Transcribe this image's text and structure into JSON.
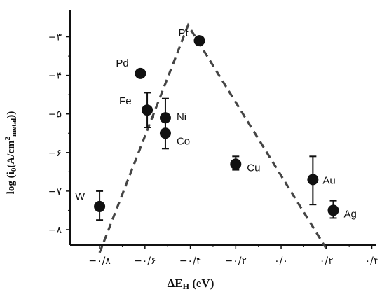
{
  "chart_data": {
    "type": "scatter",
    "title": "",
    "xlabel": "ΔE",
    "xlabel_sub": "H",
    "xlabel_unit": " (eV)",
    "ylabel_prefix": "log (i",
    "ylabel_sub0": "0",
    "ylabel_mid": "(A/cm",
    "ylabel_sup": "2",
    "ylabel_sub_metal": "metal",
    "ylabel_suffix": "))",
    "xlim": [
      -0.93,
      0.42
    ],
    "ylim": [
      -8.4,
      -2.3
    ],
    "x_ticks": [
      -0.8,
      -0.6,
      -0.4,
      -0.2,
      0.0,
      0.2,
      0.4
    ],
    "x_tick_labels": [
      "−۰/۸",
      "−۰/۶",
      "−۰/۴",
      "−۰/۲",
      "۰/۰",
      "۰/۲",
      "۰/۴"
    ],
    "y_ticks": [
      -3,
      -4,
      -5,
      -6,
      -7,
      -8
    ],
    "y_tick_labels": [
      "−۳",
      "−۴",
      "−۵",
      "−۶",
      "−۷",
      "−۸"
    ],
    "grid": false,
    "legend": "none",
    "points": [
      {
        "label": "Pt",
        "x": -0.36,
        "y": -3.1
      },
      {
        "label": "Pd",
        "x": -0.62,
        "y": -3.95
      },
      {
        "label": "Fe",
        "x": -0.59,
        "y": -4.9,
        "err_low": -5.35,
        "err_high": -4.45
      },
      {
        "label": "Ni",
        "x": -0.51,
        "y": -5.1,
        "err_low": -5.5,
        "err_high": -4.6
      },
      {
        "label": "Co",
        "x": -0.51,
        "y": -5.5,
        "err_low": -5.9,
        "err_high": -5.1
      },
      {
        "label": "Cu",
        "x": -0.2,
        "y": -6.3,
        "err_low": -6.45,
        "err_high": -6.1
      },
      {
        "label": "Au",
        "x": 0.14,
        "y": -6.7,
        "err_low": -7.35,
        "err_high": -6.1
      },
      {
        "label": "Ag",
        "x": 0.23,
        "y": -7.5,
        "err_low": -7.7,
        "err_high": -7.25
      },
      {
        "label": "W",
        "x": -0.8,
        "y": -7.4,
        "err_low": -7.75,
        "err_high": -7.0
      }
    ],
    "volcano_line": [
      {
        "x": -0.8,
        "y": -8.6
      },
      {
        "x": -0.41,
        "y": -2.7
      },
      {
        "x": 0.2,
        "y": -8.5
      }
    ],
    "marker_color": "#111111",
    "line_color": "#444444"
  }
}
